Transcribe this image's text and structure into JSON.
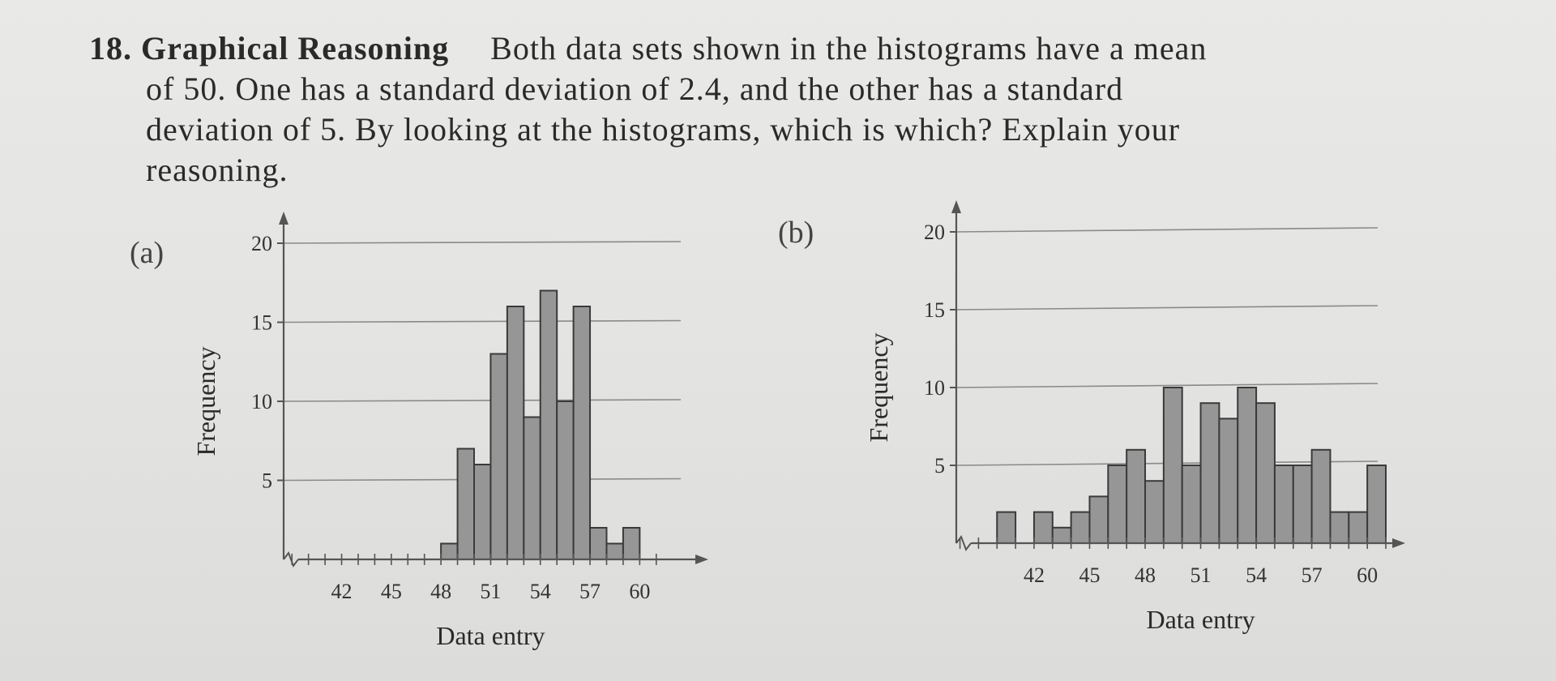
{
  "problem": {
    "number": "18.",
    "heading": "Graphical Reasoning",
    "lines": [
      "Both data sets shown in the histograms have a mean",
      "of 50. One has a standard deviation of 2.4, and the other has a standard",
      "deviation of 5. By looking at the histograms, which is which? Explain your",
      "reasoning."
    ]
  },
  "chart_data": [
    {
      "label": "(a)",
      "type": "bar",
      "xlabel": "Data entry",
      "ylabel": "Frequency",
      "x_ticks": [
        "42",
        "45",
        "48",
        "51",
        "54",
        "57",
        "60"
      ],
      "y_ticks": [
        "5",
        "10",
        "15",
        "20"
      ],
      "ylim": [
        0,
        20
      ],
      "bin_start": 48,
      "values": [
        1,
        7,
        6,
        13,
        16,
        9,
        17,
        10,
        16,
        2,
        1,
        2
      ]
    },
    {
      "label": "(b)",
      "type": "bar",
      "xlabel": "Data entry",
      "ylabel": "Frequency",
      "x_ticks": [
        "42",
        "45",
        "48",
        "51",
        "54",
        "57",
        "60"
      ],
      "y_ticks": [
        "5",
        "10",
        "15",
        "20"
      ],
      "ylim": [
        0,
        20
      ],
      "bin_start": 40,
      "values": [
        2,
        0,
        2,
        1,
        2,
        3,
        5,
        6,
        4,
        10,
        5,
        9,
        8,
        10,
        9,
        5,
        5,
        6,
        2,
        2,
        5
      ]
    }
  ]
}
